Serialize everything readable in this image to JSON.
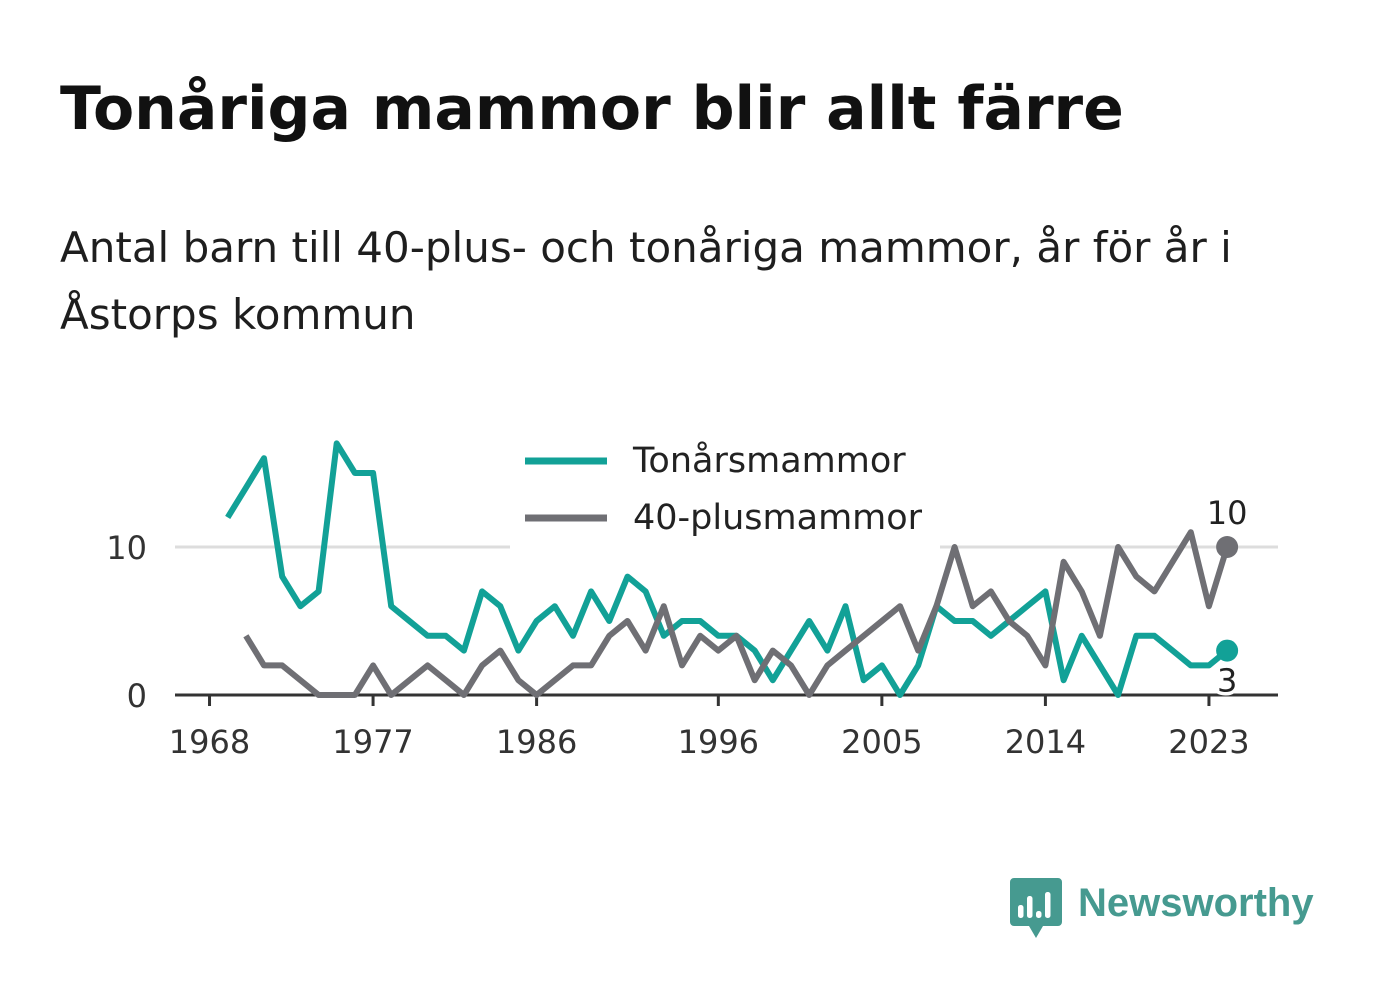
{
  "branding": {
    "logo_text": "Newsworthy",
    "logo_icon": "bar-chart-speech-bubble-icon",
    "color": "#469a90"
  },
  "chart_data": {
    "type": "line",
    "title": "Tonåriga mammor blir allt färre",
    "subtitle": "Antal barn till 40-plus- och tonåriga mammor, år för år i Åstorps kommun",
    "x_ticks": [
      1968,
      1977,
      1986,
      1996,
      2005,
      2014,
      2023
    ],
    "y_ticks": [
      0,
      10
    ],
    "xlim": [
      1966.1,
      2026.8
    ],
    "ylim": [
      0,
      17.5
    ],
    "grid": true,
    "legend_position": "top-center",
    "axis_color": "#333333",
    "grid_color": "#dddddd",
    "series": [
      {
        "name": "Tonårsmammor",
        "color": "#12a197",
        "x": [
          1969,
          1970,
          1971,
          1972,
          1973,
          1974,
          1975,
          1976,
          1977,
          1978,
          1979,
          1980,
          1981,
          1982,
          1983,
          1984,
          1985,
          1986,
          1987,
          1988,
          1989,
          1990,
          1991,
          1992,
          1993,
          1994,
          1995,
          1996,
          1997,
          1998,
          1999,
          2000,
          2001,
          2002,
          2003,
          2004,
          2005,
          2006,
          2007,
          2008,
          2009,
          2010,
          2011,
          2012,
          2013,
          2014,
          2015,
          2016,
          2017,
          2018,
          2019,
          2020,
          2021,
          2022,
          2023,
          2024
        ],
        "y": [
          12,
          14,
          16,
          8,
          6,
          7,
          17,
          15,
          15,
          6,
          5,
          4,
          4,
          3,
          7,
          6,
          3,
          5,
          6,
          4,
          7,
          5,
          8,
          7,
          4,
          5,
          5,
          4,
          4,
          3,
          1,
          3,
          5,
          3,
          6,
          1,
          2,
          0,
          2,
          6,
          5,
          5,
          4,
          5,
          6,
          7,
          1,
          4,
          2,
          0,
          4,
          4,
          3,
          2,
          2,
          3
        ]
      },
      {
        "name": "40-plusmammor",
        "color": "#6f6f74",
        "x": [
          1970,
          1971,
          1972,
          1973,
          1974,
          1975,
          1976,
          1977,
          1978,
          1979,
          1980,
          1981,
          1982,
          1983,
          1984,
          1985,
          1986,
          1987,
          1988,
          1989,
          1990,
          1991,
          1992,
          1993,
          1994,
          1995,
          1996,
          1997,
          1998,
          1999,
          2000,
          2001,
          2002,
          2003,
          2004,
          2005,
          2006,
          2007,
          2008,
          2009,
          2010,
          2011,
          2012,
          2013,
          2014,
          2015,
          2016,
          2017,
          2018,
          2019,
          2020,
          2021,
          2022,
          2023,
          2024
        ],
        "y": [
          4,
          2,
          2,
          1,
          0,
          0,
          0,
          2,
          0,
          1,
          2,
          1,
          0,
          2,
          3,
          1,
          0,
          1,
          2,
          2,
          4,
          5,
          3,
          6,
          2,
          4,
          3,
          4,
          1,
          3,
          2,
          0,
          2,
          3,
          4,
          5,
          6,
          3,
          6,
          10,
          6,
          7,
          5,
          4,
          2,
          9,
          7,
          4,
          10,
          8,
          7,
          9,
          11,
          6,
          10
        ]
      }
    ]
  }
}
